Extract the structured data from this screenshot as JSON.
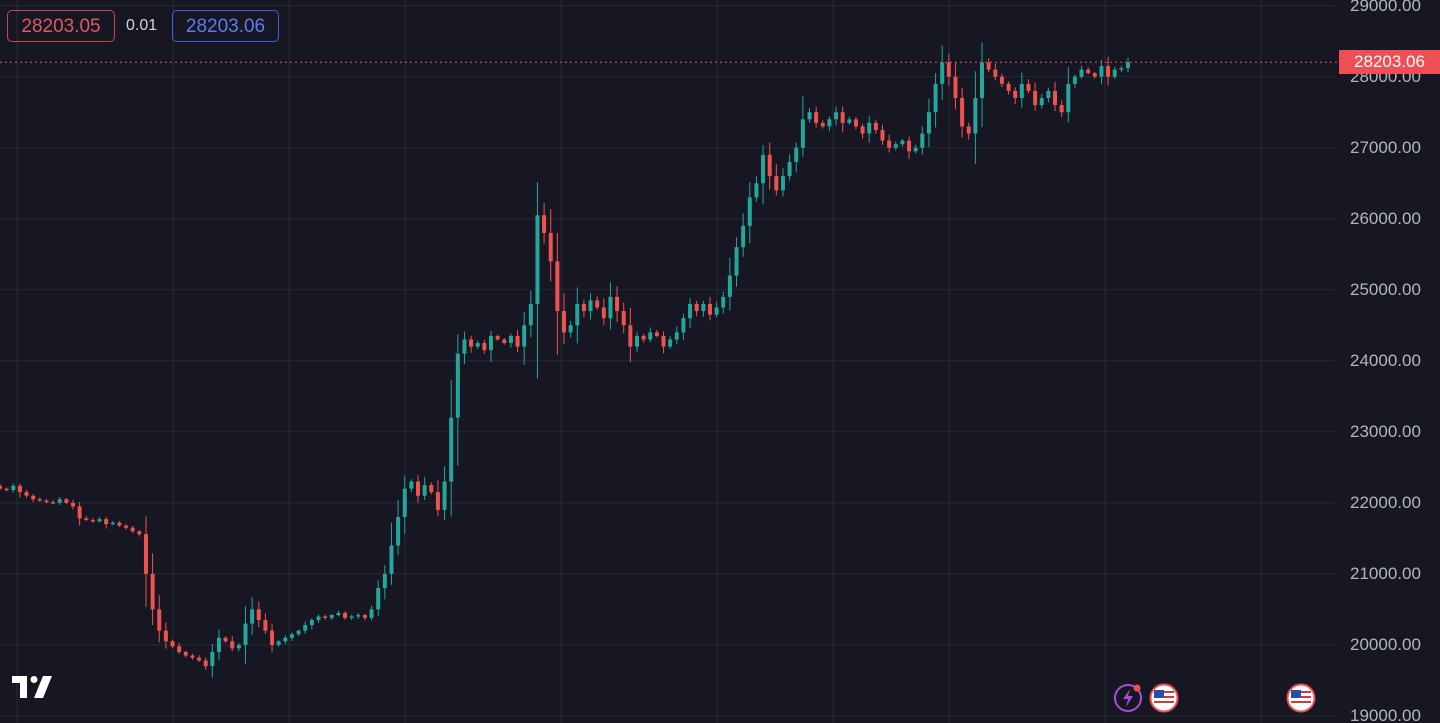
{
  "quote_panel": {
    "bid": "28203.05",
    "spread": "0.01",
    "ask": "28203.06"
  },
  "last_price_label": "28203.06",
  "colors": {
    "background": "#161722",
    "grid": "#262836",
    "up": "#26a69a",
    "down": "#ef5350",
    "last_price_line": "#ef5350",
    "bid_border": "#c4474d",
    "ask_border": "#3f5fd6"
  },
  "events": {
    "icons": [
      "lightning-icon",
      "us-flag-icon",
      "us-flag-icon"
    ]
  },
  "chart_data": {
    "type": "candlestick",
    "ylim": [
      18900,
      29080
    ],
    "y_ticks": [
      "29000.00",
      "28000.00",
      "27000.00",
      "26000.00",
      "25000.00",
      "24000.00",
      "23000.00",
      "22000.00",
      "21000.00",
      "20000.00",
      "19000.00"
    ],
    "y_tick_values": [
      29000,
      28000,
      27000,
      26000,
      25000,
      24000,
      23000,
      22000,
      21000,
      20000,
      19000
    ],
    "grid": true,
    "last_price": 28203.06,
    "series": [
      {
        "close": [
          22200,
          22180,
          22240,
          22150,
          22100,
          22050,
          22030,
          22010,
          22000,
          22050,
          22000,
          21950,
          21780,
          21760,
          21740,
          21770,
          21700,
          21720,
          21680,
          21650,
          21600,
          21560,
          21000,
          20500,
          20200,
          20050,
          19980,
          19900,
          19850,
          19820,
          19780,
          19700,
          19900,
          20100,
          20050,
          19950,
          20000,
          20300,
          20500,
          20350,
          20200,
          20000,
          20050,
          20100,
          20150,
          20200,
          20280,
          20350,
          20400,
          20380,
          20420,
          20450,
          20380,
          20400,
          20420,
          20380,
          20500,
          20800,
          21000,
          21400,
          21800,
          22200,
          22300,
          22100,
          22250,
          22150,
          21900,
          22300,
          23200,
          24100,
          24300,
          24200,
          24250,
          24150,
          24350,
          24300,
          24250,
          24350,
          24200,
          24500,
          24800,
          26050,
          25800,
          25400,
          24700,
          24400,
          24500,
          24800,
          24700,
          24850,
          24750,
          24600,
          24900,
          24700,
          24500,
          24200,
          24350,
          24300,
          24400,
          24350,
          24200,
          24300,
          24400,
          24600,
          24800,
          24700,
          24800,
          24650,
          24750,
          24900,
          25200,
          25600,
          25900,
          26300,
          26500,
          26900,
          26600,
          26400,
          26600,
          26800,
          27000,
          27400,
          27500,
          27350,
          27300,
          27400,
          27500,
          27350,
          27400,
          27300,
          27200,
          27350,
          27250,
          27100,
          27000,
          27050,
          27100,
          26950,
          27000,
          27200,
          27500,
          27900,
          28200,
          28000,
          27700,
          27300,
          27200,
          27700,
          28200,
          28100,
          28000,
          27900,
          27800,
          27700,
          27900,
          27800,
          27600,
          27700,
          27800,
          27600,
          27500,
          27900,
          28000,
          28100,
          28050,
          28000,
          28150,
          28000,
          28100,
          28120,
          28203
        ]
      }
    ]
  }
}
